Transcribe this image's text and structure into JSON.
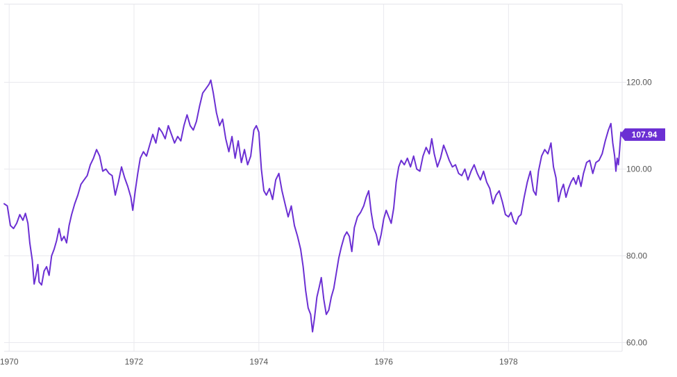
{
  "chart_data": {
    "type": "line",
    "title": "",
    "xlabel": "",
    "ylabel": "",
    "grid": true,
    "xlim": [
      1969.92,
      1979.82
    ],
    "ylim": [
      58,
      138
    ],
    "x_ticks": [
      {
        "value": 1970,
        "label": "1970"
      },
      {
        "value": 1972,
        "label": "1972"
      },
      {
        "value": 1974,
        "label": "1974"
      },
      {
        "value": 1976,
        "label": "1976"
      },
      {
        "value": 1978,
        "label": "1978"
      }
    ],
    "y_ticks": [
      {
        "value": 60,
        "label": "60.00"
      },
      {
        "value": 80,
        "label": "80.00"
      },
      {
        "value": 100,
        "label": "100.00"
      },
      {
        "value": 120,
        "label": "120.00"
      }
    ],
    "last_value_label": "107.94",
    "line_color": "#6b2fd3",
    "series": [
      {
        "values": [
          [
            1969.92,
            92.0
          ],
          [
            1969.97,
            91.5
          ],
          [
            1970.02,
            87.0
          ],
          [
            1970.07,
            86.3
          ],
          [
            1970.12,
            87.5
          ],
          [
            1970.17,
            89.5
          ],
          [
            1970.22,
            88.2
          ],
          [
            1970.26,
            89.8
          ],
          [
            1970.3,
            87.5
          ],
          [
            1970.33,
            83.0
          ],
          [
            1970.37,
            79.0
          ],
          [
            1970.4,
            73.5
          ],
          [
            1970.43,
            75.5
          ],
          [
            1970.46,
            78.0
          ],
          [
            1970.48,
            74.0
          ],
          [
            1970.52,
            73.3
          ],
          [
            1970.56,
            76.5
          ],
          [
            1970.6,
            77.5
          ],
          [
            1970.64,
            75.5
          ],
          [
            1970.68,
            80.0
          ],
          [
            1970.72,
            81.5
          ],
          [
            1970.76,
            83.5
          ],
          [
            1970.8,
            86.3
          ],
          [
            1970.84,
            83.5
          ],
          [
            1970.88,
            84.5
          ],
          [
            1970.92,
            83.0
          ],
          [
            1970.96,
            87.0
          ],
          [
            1971.0,
            89.5
          ],
          [
            1971.05,
            92.0
          ],
          [
            1971.1,
            94.0
          ],
          [
            1971.15,
            96.5
          ],
          [
            1971.2,
            97.5
          ],
          [
            1971.25,
            98.5
          ],
          [
            1971.3,
            101.0
          ],
          [
            1971.35,
            102.5
          ],
          [
            1971.4,
            104.5
          ],
          [
            1971.45,
            103.0
          ],
          [
            1971.5,
            99.5
          ],
          [
            1971.55,
            100.0
          ],
          [
            1971.6,
            99.0
          ],
          [
            1971.65,
            98.5
          ],
          [
            1971.7,
            94.0
          ],
          [
            1971.75,
            97.0
          ],
          [
            1971.8,
            100.5
          ],
          [
            1971.85,
            98.0
          ],
          [
            1971.9,
            96.0
          ],
          [
            1971.95,
            93.5
          ],
          [
            1971.98,
            90.5
          ],
          [
            1972.02,
            95.0
          ],
          [
            1972.06,
            99.0
          ],
          [
            1972.1,
            102.5
          ],
          [
            1972.15,
            104.0
          ],
          [
            1972.2,
            103.0
          ],
          [
            1972.25,
            105.5
          ],
          [
            1972.3,
            108.0
          ],
          [
            1972.35,
            106.0
          ],
          [
            1972.4,
            109.5
          ],
          [
            1972.45,
            108.5
          ],
          [
            1972.5,
            107.0
          ],
          [
            1972.55,
            110.0
          ],
          [
            1972.6,
            108.0
          ],
          [
            1972.65,
            106.0
          ],
          [
            1972.7,
            107.5
          ],
          [
            1972.75,
            106.5
          ],
          [
            1972.8,
            110.0
          ],
          [
            1972.85,
            112.5
          ],
          [
            1972.9,
            110.0
          ],
          [
            1972.95,
            109.0
          ],
          [
            1973.0,
            111.0
          ],
          [
            1973.05,
            114.5
          ],
          [
            1973.1,
            117.5
          ],
          [
            1973.15,
            118.5
          ],
          [
            1973.2,
            119.5
          ],
          [
            1973.23,
            120.5
          ],
          [
            1973.27,
            117.5
          ],
          [
            1973.32,
            113.0
          ],
          [
            1973.37,
            110.0
          ],
          [
            1973.42,
            111.5
          ],
          [
            1973.47,
            107.0
          ],
          [
            1973.52,
            104.0
          ],
          [
            1973.57,
            107.5
          ],
          [
            1973.62,
            102.5
          ],
          [
            1973.67,
            106.5
          ],
          [
            1973.72,
            101.5
          ],
          [
            1973.77,
            104.5
          ],
          [
            1973.82,
            101.0
          ],
          [
            1973.87,
            103.0
          ],
          [
            1973.92,
            109.0
          ],
          [
            1973.96,
            110.0
          ],
          [
            1974.0,
            108.5
          ],
          [
            1974.04,
            100.0
          ],
          [
            1974.08,
            95.0
          ],
          [
            1974.12,
            94.0
          ],
          [
            1974.17,
            95.5
          ],
          [
            1974.22,
            93.0
          ],
          [
            1974.27,
            97.5
          ],
          [
            1974.32,
            99.0
          ],
          [
            1974.37,
            95.0
          ],
          [
            1974.42,
            92.0
          ],
          [
            1974.47,
            89.0
          ],
          [
            1974.52,
            91.5
          ],
          [
            1974.57,
            87.0
          ],
          [
            1974.62,
            84.5
          ],
          [
            1974.67,
            81.5
          ],
          [
            1974.71,
            77.5
          ],
          [
            1974.75,
            72.0
          ],
          [
            1974.79,
            68.0
          ],
          [
            1974.83,
            66.5
          ],
          [
            1974.86,
            62.5
          ],
          [
            1974.89,
            65.5
          ],
          [
            1974.93,
            70.5
          ],
          [
            1974.97,
            73.0
          ],
          [
            1975.0,
            75.0
          ],
          [
            1975.04,
            70.0
          ],
          [
            1975.08,
            66.5
          ],
          [
            1975.12,
            67.5
          ],
          [
            1975.16,
            70.5
          ],
          [
            1975.2,
            72.5
          ],
          [
            1975.24,
            76.0
          ],
          [
            1975.28,
            79.5
          ],
          [
            1975.32,
            82.0
          ],
          [
            1975.37,
            84.5
          ],
          [
            1975.41,
            85.5
          ],
          [
            1975.45,
            84.5
          ],
          [
            1975.49,
            81.0
          ],
          [
            1975.53,
            86.5
          ],
          [
            1975.58,
            89.0
          ],
          [
            1975.63,
            90.0
          ],
          [
            1975.68,
            91.5
          ],
          [
            1975.72,
            93.5
          ],
          [
            1975.76,
            95.0
          ],
          [
            1975.8,
            90.0
          ],
          [
            1975.84,
            86.5
          ],
          [
            1975.88,
            85.0
          ],
          [
            1975.92,
            82.5
          ],
          [
            1975.96,
            85.0
          ],
          [
            1976.0,
            88.5
          ],
          [
            1976.04,
            90.5
          ],
          [
            1976.08,
            89.0
          ],
          [
            1976.12,
            87.5
          ],
          [
            1976.16,
            91.0
          ],
          [
            1976.2,
            97.0
          ],
          [
            1976.24,
            100.5
          ],
          [
            1976.28,
            102.0
          ],
          [
            1976.33,
            101.0
          ],
          [
            1976.38,
            102.5
          ],
          [
            1976.43,
            100.5
          ],
          [
            1976.48,
            103.0
          ],
          [
            1976.53,
            100.0
          ],
          [
            1976.58,
            99.5
          ],
          [
            1976.63,
            103.0
          ],
          [
            1976.68,
            105.0
          ],
          [
            1976.73,
            103.5
          ],
          [
            1976.77,
            107.0
          ],
          [
            1976.81,
            103.5
          ],
          [
            1976.86,
            100.5
          ],
          [
            1976.91,
            102.5
          ],
          [
            1976.96,
            105.5
          ],
          [
            1977.0,
            104.0
          ],
          [
            1977.05,
            102.0
          ],
          [
            1977.1,
            100.5
          ],
          [
            1977.15,
            101.0
          ],
          [
            1977.2,
            99.0
          ],
          [
            1977.25,
            98.5
          ],
          [
            1977.3,
            100.0
          ],
          [
            1977.35,
            97.5
          ],
          [
            1977.4,
            99.5
          ],
          [
            1977.45,
            101.0
          ],
          [
            1977.5,
            99.0
          ],
          [
            1977.55,
            97.5
          ],
          [
            1977.6,
            99.5
          ],
          [
            1977.65,
            97.0
          ],
          [
            1977.7,
            95.5
          ],
          [
            1977.75,
            92.0
          ],
          [
            1977.8,
            94.0
          ],
          [
            1977.85,
            95.0
          ],
          [
            1977.9,
            92.5
          ],
          [
            1977.95,
            89.5
          ],
          [
            1978.0,
            89.0
          ],
          [
            1978.04,
            90.0
          ],
          [
            1978.08,
            88.0
          ],
          [
            1978.12,
            87.3
          ],
          [
            1978.16,
            89.0
          ],
          [
            1978.2,
            89.5
          ],
          [
            1978.25,
            93.5
          ],
          [
            1978.3,
            97.0
          ],
          [
            1978.35,
            99.5
          ],
          [
            1978.4,
            95.0
          ],
          [
            1978.44,
            94.0
          ],
          [
            1978.48,
            99.5
          ],
          [
            1978.53,
            103.0
          ],
          [
            1978.58,
            104.5
          ],
          [
            1978.63,
            103.5
          ],
          [
            1978.68,
            106.0
          ],
          [
            1978.72,
            100.5
          ],
          [
            1978.76,
            98.0
          ],
          [
            1978.8,
            92.5
          ],
          [
            1978.84,
            95.0
          ],
          [
            1978.88,
            96.5
          ],
          [
            1978.92,
            93.5
          ],
          [
            1978.96,
            95.5
          ],
          [
            1979.0,
            97.0
          ],
          [
            1979.04,
            98.0
          ],
          [
            1979.08,
            96.5
          ],
          [
            1979.12,
            98.5
          ],
          [
            1979.16,
            96.0
          ],
          [
            1979.2,
            99.0
          ],
          [
            1979.25,
            101.5
          ],
          [
            1979.3,
            102.0
          ],
          [
            1979.35,
            99.0
          ],
          [
            1979.4,
            101.5
          ],
          [
            1979.45,
            102.0
          ],
          [
            1979.5,
            103.5
          ],
          [
            1979.55,
            106.5
          ],
          [
            1979.6,
            109.0
          ],
          [
            1979.64,
            110.5
          ],
          [
            1979.67,
            106.0
          ],
          [
            1979.7,
            103.0
          ],
          [
            1979.72,
            99.5
          ],
          [
            1979.74,
            102.5
          ],
          [
            1979.76,
            101.0
          ],
          [
            1979.78,
            104.5
          ],
          [
            1979.8,
            108.5
          ],
          [
            1979.82,
            107.94
          ]
        ]
      }
    ]
  }
}
